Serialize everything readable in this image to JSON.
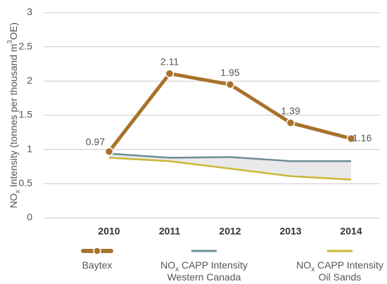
{
  "chart_data": {
    "type": "line",
    "ylabel": [
      {
        "text": "NO"
      },
      {
        "text": "x",
        "sub": true
      },
      {
        "text": " Intensity (tonnes per thousand m"
      },
      {
        "text": "3",
        "sup": true
      },
      {
        "text": "OE)"
      }
    ],
    "categories": [
      "2010",
      "2011",
      "2012",
      "2013",
      "2014"
    ],
    "series": [
      {
        "name": [
          [
            {
              "text": "Baytex"
            }
          ]
        ],
        "color": "#a8722c",
        "markers": true,
        "labels": true,
        "values": [
          0.97,
          2.11,
          1.95,
          1.39,
          1.16
        ]
      },
      {
        "name": [
          [
            {
              "text": "NO"
            },
            {
              "text": "x",
              "sub": true
            },
            {
              "text": " CAPP Intensity"
            }
          ],
          [
            {
              "text": "Western Canada"
            }
          ]
        ],
        "color": "#6f8e95",
        "values": [
          0.94,
          0.88,
          0.89,
          0.83,
          0.83
        ]
      },
      {
        "name": [
          [
            {
              "text": "NO"
            },
            {
              "text": "x",
              "sub": true
            },
            {
              "text": " CAPP Intensity"
            }
          ],
          [
            {
              "text": "Oil Sands"
            }
          ]
        ],
        "color": "#c9b834",
        "values": [
          0.88,
          0.83,
          0.72,
          0.61,
          0.56
        ]
      }
    ],
    "fill_between": {
      "series": [
        1,
        2
      ],
      "color": "#e9e9e9"
    },
    "ylim": [
      0,
      3
    ],
    "yticks": [
      0,
      0.5,
      1,
      1.5,
      2,
      2.5,
      3
    ],
    "grid": true
  }
}
